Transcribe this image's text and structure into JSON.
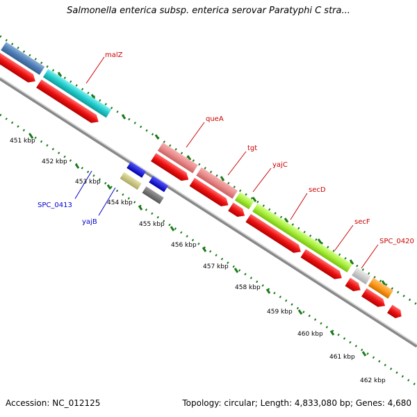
{
  "title": "Salmonella enterica subsp. enterica serovar Paratyphi C stra...",
  "footer": {
    "accession": "Accession: NC_012125",
    "topology": "Topology: circular; Length: 4,833,080 bp; Genes: 4,680"
  },
  "colors": {
    "backbone": "#a8a8a8",
    "cds_red": "#ee1111",
    "ticks": "#1a7a1a",
    "gene_label_red": "#cc0000",
    "gene_label_blue": "#0000cc"
  },
  "kbp_labels": [
    "451 kbp",
    "452 kbp",
    "453 kbp",
    "454 kbp",
    "455 kbp",
    "456 kbp",
    "457 kbp",
    "458 kbp",
    "459 kbp",
    "460 kbp",
    "461 kbp",
    "462 kbp"
  ],
  "gene_labels": [
    "malZ",
    "queA",
    "tgt",
    "yajC",
    "secD",
    "secF",
    "SPC_0420",
    "SPC_0413",
    "yajB"
  ]
}
